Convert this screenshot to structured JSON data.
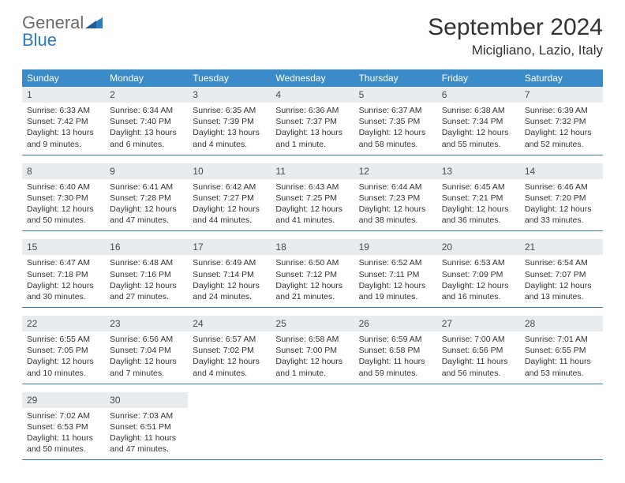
{
  "brand": {
    "word1": "General",
    "word2": "Blue"
  },
  "colors": {
    "header_bg": "#3b8bc9",
    "daynum_bg": "#e9ecef",
    "rule": "#3b7bb0",
    "brand_gray": "#6b6b6b",
    "brand_blue": "#2b7bbf"
  },
  "title": "September 2024",
  "location": "Micigliano, Lazio, Italy",
  "weekdays": [
    "Sunday",
    "Monday",
    "Tuesday",
    "Wednesday",
    "Thursday",
    "Friday",
    "Saturday"
  ],
  "weeks": [
    [
      {
        "n": "1",
        "sr": "6:33 AM",
        "ss": "7:42 PM",
        "dl": "13 hours and 9 minutes."
      },
      {
        "n": "2",
        "sr": "6:34 AM",
        "ss": "7:40 PM",
        "dl": "13 hours and 6 minutes."
      },
      {
        "n": "3",
        "sr": "6:35 AM",
        "ss": "7:39 PM",
        "dl": "13 hours and 4 minutes."
      },
      {
        "n": "4",
        "sr": "6:36 AM",
        "ss": "7:37 PM",
        "dl": "13 hours and 1 minute."
      },
      {
        "n": "5",
        "sr": "6:37 AM",
        "ss": "7:35 PM",
        "dl": "12 hours and 58 minutes."
      },
      {
        "n": "6",
        "sr": "6:38 AM",
        "ss": "7:34 PM",
        "dl": "12 hours and 55 minutes."
      },
      {
        "n": "7",
        "sr": "6:39 AM",
        "ss": "7:32 PM",
        "dl": "12 hours and 52 minutes."
      }
    ],
    [
      {
        "n": "8",
        "sr": "6:40 AM",
        "ss": "7:30 PM",
        "dl": "12 hours and 50 minutes."
      },
      {
        "n": "9",
        "sr": "6:41 AM",
        "ss": "7:28 PM",
        "dl": "12 hours and 47 minutes."
      },
      {
        "n": "10",
        "sr": "6:42 AM",
        "ss": "7:27 PM",
        "dl": "12 hours and 44 minutes."
      },
      {
        "n": "11",
        "sr": "6:43 AM",
        "ss": "7:25 PM",
        "dl": "12 hours and 41 minutes."
      },
      {
        "n": "12",
        "sr": "6:44 AM",
        "ss": "7:23 PM",
        "dl": "12 hours and 38 minutes."
      },
      {
        "n": "13",
        "sr": "6:45 AM",
        "ss": "7:21 PM",
        "dl": "12 hours and 36 minutes."
      },
      {
        "n": "14",
        "sr": "6:46 AM",
        "ss": "7:20 PM",
        "dl": "12 hours and 33 minutes."
      }
    ],
    [
      {
        "n": "15",
        "sr": "6:47 AM",
        "ss": "7:18 PM",
        "dl": "12 hours and 30 minutes."
      },
      {
        "n": "16",
        "sr": "6:48 AM",
        "ss": "7:16 PM",
        "dl": "12 hours and 27 minutes."
      },
      {
        "n": "17",
        "sr": "6:49 AM",
        "ss": "7:14 PM",
        "dl": "12 hours and 24 minutes."
      },
      {
        "n": "18",
        "sr": "6:50 AM",
        "ss": "7:12 PM",
        "dl": "12 hours and 21 minutes."
      },
      {
        "n": "19",
        "sr": "6:52 AM",
        "ss": "7:11 PM",
        "dl": "12 hours and 19 minutes."
      },
      {
        "n": "20",
        "sr": "6:53 AM",
        "ss": "7:09 PM",
        "dl": "12 hours and 16 minutes."
      },
      {
        "n": "21",
        "sr": "6:54 AM",
        "ss": "7:07 PM",
        "dl": "12 hours and 13 minutes."
      }
    ],
    [
      {
        "n": "22",
        "sr": "6:55 AM",
        "ss": "7:05 PM",
        "dl": "12 hours and 10 minutes."
      },
      {
        "n": "23",
        "sr": "6:56 AM",
        "ss": "7:04 PM",
        "dl": "12 hours and 7 minutes."
      },
      {
        "n": "24",
        "sr": "6:57 AM",
        "ss": "7:02 PM",
        "dl": "12 hours and 4 minutes."
      },
      {
        "n": "25",
        "sr": "6:58 AM",
        "ss": "7:00 PM",
        "dl": "12 hours and 1 minute."
      },
      {
        "n": "26",
        "sr": "6:59 AM",
        "ss": "6:58 PM",
        "dl": "11 hours and 59 minutes."
      },
      {
        "n": "27",
        "sr": "7:00 AM",
        "ss": "6:56 PM",
        "dl": "11 hours and 56 minutes."
      },
      {
        "n": "28",
        "sr": "7:01 AM",
        "ss": "6:55 PM",
        "dl": "11 hours and 53 minutes."
      }
    ],
    [
      {
        "n": "29",
        "sr": "7:02 AM",
        "ss": "6:53 PM",
        "dl": "11 hours and 50 minutes."
      },
      {
        "n": "30",
        "sr": "7:03 AM",
        "ss": "6:51 PM",
        "dl": "11 hours and 47 minutes."
      },
      null,
      null,
      null,
      null,
      null
    ]
  ],
  "labels": {
    "sunrise": "Sunrise:",
    "sunset": "Sunset:",
    "daylight": "Daylight:"
  }
}
